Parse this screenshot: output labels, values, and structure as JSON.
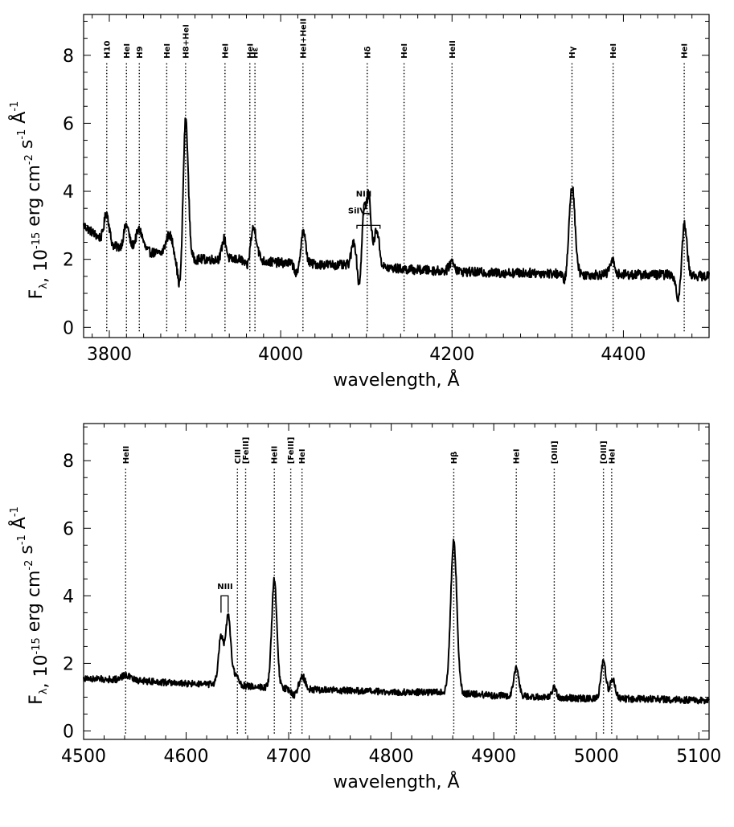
{
  "chart_data": [
    {
      "type": "line",
      "xlabel": "wavelength, Å",
      "ylabel": "F_λ, 10^-15 erg cm^-2 s^-1 Å^-1",
      "xlim": [
        3770,
        4500
      ],
      "ylim": [
        -0.3,
        9.2
      ],
      "xticks": [
        3800,
        4000,
        4200,
        4400
      ],
      "yticks": [
        0,
        2,
        4,
        6,
        8
      ],
      "grid": false,
      "continuum": [
        [
          3770,
          3.0
        ],
        [
          3800,
          2.4
        ],
        [
          3850,
          2.2
        ],
        [
          3900,
          2.0
        ],
        [
          3950,
          2.0
        ],
        [
          4000,
          1.9
        ],
        [
          4050,
          1.85
        ],
        [
          4100,
          1.8
        ],
        [
          4150,
          1.7
        ],
        [
          4200,
          1.65
        ],
        [
          4250,
          1.6
        ],
        [
          4300,
          1.6
        ],
        [
          4350,
          1.55
        ],
        [
          4400,
          1.55
        ],
        [
          4450,
          1.55
        ],
        [
          4500,
          1.5
        ]
      ],
      "features": [
        [
          3797,
          0.9,
          3
        ],
        [
          3820,
          0.7,
          3
        ],
        [
          3835,
          0.6,
          4
        ],
        [
          3870,
          0.6,
          4
        ],
        [
          3889,
          4.2,
          3
        ],
        [
          3883,
          -1.1,
          3
        ],
        [
          3934,
          0.6,
          2.5
        ],
        [
          3968,
          1.0,
          4
        ],
        [
          3962,
          -0.4,
          3
        ],
        [
          4026,
          1.0,
          3
        ],
        [
          4020,
          -0.4,
          3
        ],
        [
          4086,
          0.8,
          3
        ],
        [
          4092,
          -0.8,
          3
        ],
        [
          4097,
          1.8,
          2.5
        ],
        [
          4103,
          2.0,
          2.5
        ],
        [
          4112,
          1.1,
          3
        ],
        [
          4200,
          0.3,
          3
        ],
        [
          4340,
          2.6,
          3.5
        ],
        [
          4333,
          -0.3,
          3
        ],
        [
          4387,
          0.4,
          3
        ],
        [
          4471,
          1.6,
          3
        ],
        [
          4465,
          -0.8,
          3
        ]
      ],
      "lines": [
        {
          "label": "H10",
          "wl": 3797
        },
        {
          "label": "HeI",
          "wl": 3820
        },
        {
          "label": "H9",
          "wl": 3835
        },
        {
          "label": "HeI",
          "wl": 3867
        },
        {
          "label": "H8+HeI",
          "wl": 3889
        },
        {
          "label": "HeI",
          "wl": 3935
        },
        {
          "label": "HeI",
          "wl": 3964
        },
        {
          "label": "Hε",
          "wl": 3970
        },
        {
          "label": "HeI+HeII",
          "wl": 4026
        },
        {
          "label": "Hδ",
          "wl": 4101
        },
        {
          "label": "HeI",
          "wl": 4144
        },
        {
          "label": "HeII",
          "wl": 4200
        },
        {
          "label": "Hγ",
          "wl": 4340
        },
        {
          "label": "HeI",
          "wl": 4388
        },
        {
          "label": "HeI",
          "wl": 4471
        }
      ],
      "annotations": [
        {
          "label": "NIII",
          "wl": 4097,
          "y": 3.85
        },
        {
          "label": "SiIV",
          "wl": 4089,
          "y": 3.35
        }
      ],
      "brackets": [
        {
          "x1": 4089,
          "x2": 4116,
          "ylow": 2.9,
          "ytop": 3.0
        },
        {
          "x1": 4097,
          "x2": 4103,
          "ylow": 3.3,
          "ytop": 3.35
        }
      ]
    },
    {
      "type": "line",
      "xlabel": "wavelength, Å",
      "ylabel": "F_λ, 10^-15 erg cm^-2 s^-1 Å^-1",
      "xlim": [
        4500,
        5110
      ],
      "ylim": [
        -0.25,
        9.1
      ],
      "xticks": [
        4500,
        4600,
        4700,
        4800,
        4900,
        5000,
        5100
      ],
      "yticks": [
        0,
        2,
        4,
        6,
        8
      ],
      "grid": false,
      "continuum": [
        [
          4500,
          1.55
        ],
        [
          4550,
          1.5
        ],
        [
          4600,
          1.4
        ],
        [
          4650,
          1.35
        ],
        [
          4700,
          1.25
        ],
        [
          4750,
          1.2
        ],
        [
          4800,
          1.15
        ],
        [
          4850,
          1.15
        ],
        [
          4900,
          1.05
        ],
        [
          4950,
          1.0
        ],
        [
          5000,
          0.95
        ],
        [
          5050,
          0.95
        ],
        [
          5110,
          0.9
        ]
      ],
      "features": [
        [
          4541,
          0.15,
          4
        ],
        [
          4634,
          1.4,
          2.5
        ],
        [
          4641,
          2.0,
          2.5
        ],
        [
          4648,
          0.3,
          3
        ],
        [
          4686,
          3.2,
          2.5
        ],
        [
          4713,
          0.4,
          3
        ],
        [
          4706,
          -0.2,
          3
        ],
        [
          4861,
          4.5,
          3
        ],
        [
          4922,
          0.85,
          2.5
        ],
        [
          4959,
          0.3,
          2
        ],
        [
          5007,
          1.1,
          2.5
        ],
        [
          5016,
          0.6,
          2.5
        ]
      ],
      "lines": [
        {
          "label": "HeII",
          "wl": 4541
        },
        {
          "label": "CIII",
          "wl": 4650
        },
        {
          "label": "[FeIII]",
          "wl": 4658
        },
        {
          "label": "HeII",
          "wl": 4686
        },
        {
          "label": "[FeIII]",
          "wl": 4702
        },
        {
          "label": "HeI",
          "wl": 4713
        },
        {
          "label": "Hβ",
          "wl": 4861
        },
        {
          "label": "HeI",
          "wl": 4922
        },
        {
          "label": "[OIII]",
          "wl": 4959
        },
        {
          "label": "[OIII]",
          "wl": 5007
        },
        {
          "label": "HeI",
          "wl": 5015
        }
      ],
      "annotations": [
        {
          "label": "NIII",
          "wl": 4638,
          "y": 4.2
        }
      ],
      "brackets": [
        {
          "x1": 4634,
          "x2": 4641,
          "ylow": 3.5,
          "ytop": 4.0
        }
      ]
    }
  ]
}
